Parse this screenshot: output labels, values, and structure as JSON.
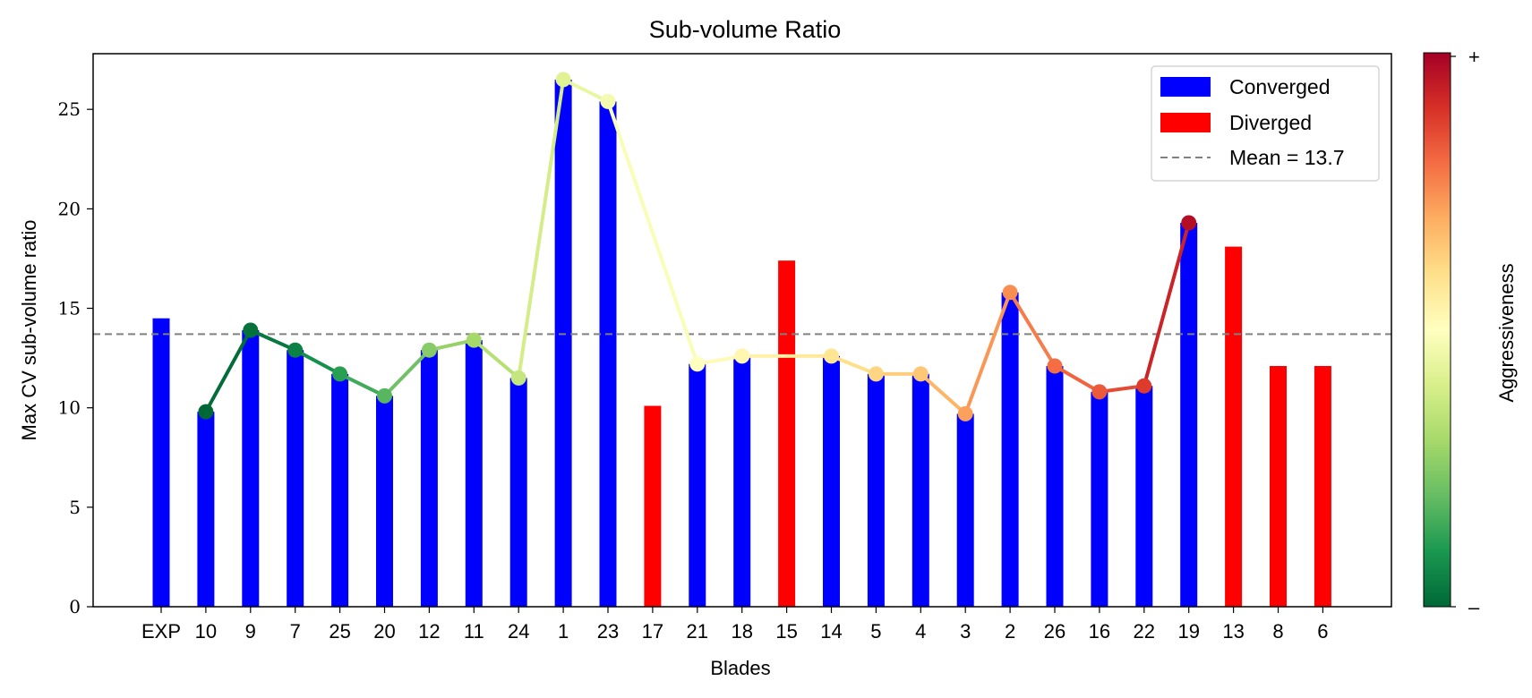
{
  "chart_data": {
    "type": "bar",
    "title": "Sub-volume Ratio",
    "xlabel": "Blades",
    "ylabel": "Max CV sub-volume ratio",
    "ylim": [
      0,
      27.8
    ],
    "yticks": [
      0,
      5,
      10,
      15,
      20,
      25
    ],
    "grid": false,
    "legend_position": "top-right",
    "categories": [
      "EXP",
      "10",
      "9",
      "7",
      "25",
      "20",
      "12",
      "11",
      "24",
      "1",
      "23",
      "17",
      "21",
      "18",
      "15",
      "14",
      "5",
      "4",
      "3",
      "2",
      "26",
      "16",
      "22",
      "19",
      "13",
      "8",
      "6"
    ],
    "values": [
      14.5,
      9.8,
      13.9,
      12.9,
      11.7,
      10.6,
      12.9,
      13.4,
      11.5,
      26.5,
      25.4,
      10.1,
      12.2,
      12.6,
      17.4,
      12.6,
      11.7,
      11.7,
      9.7,
      15.8,
      12.1,
      10.8,
      11.1,
      19.3,
      18.1,
      12.1,
      12.1
    ],
    "status": [
      "converged",
      "converged",
      "converged",
      "converged",
      "converged",
      "converged",
      "converged",
      "converged",
      "converged",
      "converged",
      "converged",
      "diverged",
      "converged",
      "converged",
      "diverged",
      "converged",
      "converged",
      "converged",
      "converged",
      "converged",
      "converged",
      "converged",
      "converged",
      "converged",
      "diverged",
      "diverged",
      "diverged"
    ],
    "line_series": {
      "categories": [
        "10",
        "9",
        "7",
        "25",
        "20",
        "12",
        "11",
        "24",
        "1",
        "23",
        "21",
        "18",
        "15",
        "14",
        "5",
        "4",
        "3",
        "2",
        "26",
        "16",
        "22",
        "19"
      ],
      "values": [
        9.8,
        13.9,
        12.9,
        11.7,
        10.6,
        12.9,
        13.4,
        11.5,
        26.5,
        25.4,
        12.2,
        12.6,
        12.6,
        12.6,
        11.7,
        11.7,
        9.7,
        15.8,
        12.1,
        10.8,
        11.1,
        19.3
      ],
      "marker_visible": [
        true,
        true,
        true,
        true,
        true,
        true,
        true,
        true,
        true,
        true,
        true,
        true,
        false,
        true,
        true,
        true,
        true,
        true,
        true,
        true,
        true,
        true
      ],
      "aggressiveness": [
        0.0,
        0.02,
        0.05,
        0.12,
        0.18,
        0.25,
        0.3,
        0.36,
        0.42,
        0.47,
        0.5,
        0.53,
        0.56,
        0.58,
        0.62,
        0.65,
        0.72,
        0.75,
        0.8,
        0.83,
        0.88,
        0.97
      ]
    },
    "mean": 13.7,
    "legend": [
      {
        "label": "Converged",
        "kind": "patch",
        "color": "#0000ff"
      },
      {
        "label": "Diverged",
        "kind": "patch",
        "color": "#ff0000"
      },
      {
        "label": "Mean = 13.7",
        "kind": "dashed-line",
        "color": "#808080"
      }
    ],
    "colorbar": {
      "label": "Aggressiveness",
      "colormap": "RdYlGn_r",
      "top_label": "+",
      "bottom_label": "–"
    },
    "colors": {
      "converged": "#0000ff",
      "diverged": "#ff0000",
      "mean_line": "#808080"
    }
  }
}
